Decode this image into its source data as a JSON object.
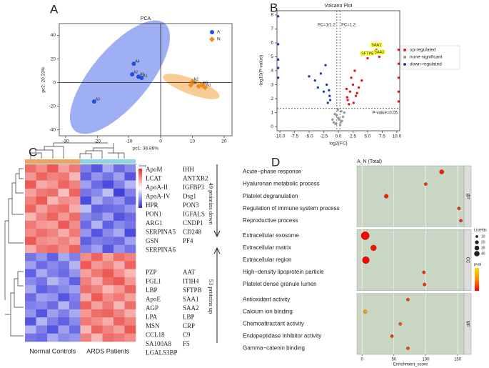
{
  "panel_labels": [
    "A",
    "B",
    "C",
    "D"
  ],
  "chart_data": [
    {
      "type": "scatter",
      "title": "PCA",
      "xlabel": "pc1: 36.86%",
      "ylabel": "pc2: 20.23%",
      "xlim": [
        -32,
        22.5
      ],
      "xticks": [
        -30,
        -20,
        -10,
        0,
        10,
        20
      ],
      "ylim": [
        -45,
        50
      ],
      "yticks": [
        -40,
        -20,
        0,
        20,
        40
      ],
      "zero_lines": true,
      "legend": "upper right",
      "series": [
        {
          "name": "A",
          "color": "#1f4fe0",
          "marker": "circle",
          "x": [
            -8.5,
            -9,
            -7,
            -6,
            -21
          ],
          "values": [
            16,
            7,
            5,
            4,
            -16
          ],
          "labels": [
            "A4",
            "A2",
            "A5",
            "A1",
            "A3"
          ]
        },
        {
          "name": "N",
          "color": "#f28c1e",
          "marker": "diamond",
          "x": [
            10,
            9.5,
            12,
            14,
            13
          ],
          "values": [
            1,
            -2,
            -3,
            -4,
            -2
          ],
          "labels": [
            "N2",
            "N4",
            "N5",
            "N1",
            "N3"
          ]
        }
      ]
    },
    {
      "type": "scatter",
      "title": "Volcano Plot",
      "xlabel": "log2(FC)",
      "ylabel": "-log10(P-value)",
      "xlim": [
        -10.5,
        10.5
      ],
      "xticks": [
        {
          "value": -10,
          "label": "-10.0"
        },
        -7.5,
        {
          "value": -5,
          "label": "-5.0"
        },
        -2.5,
        {
          "value": 0,
          "label": "0.0"
        },
        2.5,
        {
          "value": 5,
          "label": "5.0"
        },
        7.5,
        {
          "value": 10,
          "label": "10.0"
        }
      ],
      "ylim": [
        -0.3,
        8.3
      ],
      "yticks": [
        0,
        1,
        2,
        3,
        4,
        5,
        6,
        7,
        8
      ],
      "legend": "center right",
      "thresholds": {
        "x": [
          -0.263,
          0.263
        ],
        "y": 1.301,
        "labels": [
          "FC=1/1.2",
          "FC=1.2",
          "P-value=0.05"
        ]
      },
      "series": [
        {
          "name": "up-regulated",
          "color": "#e41a1c",
          "marker": "circle",
          "x": [
            1.5,
            2,
            2.5,
            3,
            1.8,
            2.2,
            3.5,
            1.6,
            2.8,
            4,
            1.4,
            2.6,
            3.2,
            10.3,
            10.3,
            10.3,
            10.3,
            10.3,
            5,
            6.5,
            7
          ],
          "values": [
            2.1,
            2.5,
            3,
            2.2,
            1.6,
            3.5,
            2.8,
            1.9,
            4,
            3.3,
            2.7,
            1.7,
            2.4,
            5.5,
            4.5,
            3.5,
            2.5,
            1.8,
            4.9,
            5.5,
            5
          ],
          "labels": [
            null,
            null,
            null,
            null,
            null,
            null,
            null,
            null,
            null,
            null,
            null,
            null,
            null,
            null,
            null,
            null,
            null,
            null,
            "SFTPB",
            "SAA1",
            "SAA2"
          ]
        },
        {
          "name": "none-significant",
          "color": "#999999",
          "marker": "circle",
          "x": [
            -0.8,
            -0.3,
            0.2,
            0.5,
            -0.5,
            0.8,
            -0.1,
            0.3,
            -0.6,
            0.6,
            0,
            1,
            -1,
            0.4,
            -0.4
          ],
          "values": [
            0.3,
            0.8,
            0.5,
            1.1,
            0.2,
            0.7,
            1.2,
            0.1,
            0.9,
            0.4,
            0.6,
            1.0,
            0.5,
            0.3,
            0.2
          ]
        },
        {
          "name": "down-regulated",
          "color": "#1f3fbf",
          "marker": "circle",
          "x": [
            -1.5,
            -2,
            -2.5,
            -3,
            -1.8,
            -4,
            -3.5,
            -1.4,
            -2.2,
            -5,
            -1.6,
            -10.3,
            -10.3,
            -10.3,
            -10.3,
            -10.3
          ],
          "values": [
            2.2,
            3,
            2.5,
            3.8,
            1.7,
            3.3,
            2.8,
            1.9,
            4.4,
            3.6,
            2.6,
            7.9,
            5.9,
            4.8,
            4.2,
            3.5
          ]
        }
      ]
    },
    {
      "type": "heatmap",
      "legend_title": "Group",
      "color_range": [
        -2,
        2
      ],
      "colors": [
        "#2b2bd9",
        "#ffffff",
        "#e8302a"
      ],
      "column_groups": [
        {
          "name": "Normal Controls",
          "color": "#f0a35e",
          "columns": 5
        },
        {
          "name": "ARDS Patients",
          "color": "#8fd3e8",
          "columns": 5
        }
      ],
      "matrix": [
        [
          1.4,
          1.1,
          1.6,
          0.9,
          1.3,
          -1.2,
          -1.6,
          -0.8,
          -1.4,
          -1.1
        ],
        [
          1.0,
          1.5,
          1.2,
          1.3,
          0.7,
          -1.5,
          -1.0,
          -1.3,
          -0.9,
          -1.6
        ],
        [
          1.6,
          0.8,
          1.0,
          1.5,
          1.2,
          -0.9,
          -1.4,
          -1.7,
          -1.2,
          -0.7
        ],
        [
          0.9,
          1.3,
          1.4,
          0.6,
          1.5,
          -1.3,
          -1.1,
          -0.6,
          -1.8,
          -1.2
        ],
        [
          1.2,
          1.6,
          0.7,
          1.1,
          1.0,
          -1.7,
          -0.8,
          -1.2,
          -1.0,
          -1.5
        ],
        [
          1.5,
          0.9,
          1.3,
          1.4,
          0.8,
          -0.6,
          -1.5,
          -1.4,
          -1.3,
          -1.0
        ],
        [
          0.7,
          1.2,
          1.5,
          1.0,
          1.4,
          -1.1,
          -1.3,
          -0.9,
          -1.6,
          -1.4
        ],
        [
          1.3,
          1.0,
          0.9,
          1.6,
          1.1,
          -1.4,
          -0.7,
          -1.5,
          -1.1,
          -1.3
        ],
        [
          1.1,
          1.4,
          1.2,
          0.8,
          1.3,
          -1.0,
          -1.6,
          -1.1,
          -0.8,
          -1.7
        ],
        [
          1.6,
          1.1,
          1.0,
          1.2,
          0.9,
          -1.5,
          -1.2,
          -1.3,
          -1.4,
          -0.9
        ],
        [
          0.8,
          1.3,
          1.4,
          1.1,
          1.5,
          -1.2,
          -0.9,
          -1.6,
          -1.0,
          -1.3
        ],
        [
          -1.3,
          -1.0,
          -1.5,
          -0.8,
          -1.2,
          1.1,
          1.5,
          0.9,
          1.4,
          1.2
        ],
        [
          -0.9,
          -1.4,
          -1.1,
          -1.3,
          -0.7,
          1.6,
          1.0,
          1.2,
          0.8,
          1.5
        ],
        [
          -1.5,
          -0.8,
          -1.2,
          -1.4,
          -1.0,
          0.9,
          1.3,
          1.6,
          1.1,
          0.7
        ],
        [
          -1.1,
          -1.3,
          -0.7,
          -1.0,
          -1.5,
          1.2,
          0.8,
          1.4,
          1.6,
          1.0
        ],
        [
          -0.8,
          -1.5,
          -1.3,
          -1.1,
          -0.9,
          1.4,
          1.2,
          0.7,
          1.0,
          1.5
        ],
        [
          -1.4,
          -0.9,
          -1.0,
          -1.6,
          -1.2,
          0.8,
          1.6,
          1.1,
          1.3,
          0.9
        ],
        [
          -1.2,
          -1.1,
          -1.4,
          -0.7,
          -1.3,
          1.5,
          0.9,
          1.3,
          0.7,
          1.4
        ],
        [
          -1.0,
          -1.6,
          -0.9,
          -1.2,
          -0.8,
          1.0,
          1.4,
          1.5,
          1.2,
          0.8
        ],
        [
          -1.6,
          -0.7,
          -1.2,
          -1.5,
          -1.1,
          1.3,
          1.1,
          0.8,
          1.5,
          1.2
        ],
        [
          -0.7,
          -1.2,
          -1.6,
          -0.9,
          -1.4,
          0.7,
          1.5,
          1.2,
          0.9,
          1.6
        ],
        [
          -1.3,
          -1.4,
          -0.8,
          -1.1,
          -1.0,
          1.2,
          0.7,
          1.4,
          1.3,
          1.1
        ]
      ],
      "protein_labels": [
        {
          "names": [
            "ApoM",
            "LCAT",
            "ApoA-II",
            "ApoA-IV",
            "HPR",
            "PON1",
            "ARG1",
            "SERPINA5",
            "GSN",
            "SERPINA6"
          ],
          "colors": [
            "#2f7fc1",
            "#222222",
            "#2f7fc1",
            "#2f7fc1",
            "#2f7fc1",
            "#2f7fc1",
            "#222222",
            "#2f7fc1",
            "#222222",
            "#2f7fc1"
          ]
        },
        {
          "names": [
            "IHH",
            "ANTXR2",
            "IGFBP3",
            "Dsg1",
            "PON3",
            "IGFALS",
            "CNDP1",
            "CD248",
            "PF4"
          ],
          "colors": [
            "#222222",
            "#222222",
            "#2f7fc1",
            "#222222",
            "#2f7fc1",
            "#222222",
            "#222222",
            "#222222",
            "#222222"
          ]
        },
        {
          "names": [
            "PZP",
            "FGL1",
            "LBP",
            "ApoE",
            "AGP",
            "LPA",
            "MSN",
            "CCL18",
            "SA100A8",
            "LGALS3BP"
          ],
          "colors": [
            "#222222",
            "#222222",
            "#e02a2a",
            "#e02a2a",
            "#222222",
            "#e02a2a",
            "#222222",
            "#222222",
            "#e02a2a",
            "#e02a2a"
          ]
        },
        {
          "names": [
            "AAT",
            "ITIH4",
            "SFTPB",
            "SAA1",
            "SAA2",
            "LBP",
            "CRP",
            "C9",
            "F5"
          ],
          "colors": [
            "#222222",
            "#e02a2a",
            "#e02a2a",
            "#e02a2a",
            "#e02a2a",
            "#222222",
            "#222222",
            "#222222",
            "#222222"
          ]
        }
      ],
      "annotations": [
        "49 proteins down",
        "53 proteins up"
      ]
    },
    {
      "type": "dot",
      "title": "A_N (Total)",
      "xlabel": "Enrichment_score",
      "xlim": [
        -8,
        160
      ],
      "xticks": [
        0,
        50,
        100,
        150
      ],
      "categories": [
        "Acute−phase response",
        "Hyaluronan metabolic process",
        "Platelet degranulation",
        "Regulation of immune system process",
        "Reproductive process",
        "Extracellular exosome",
        "Extracellular matrix",
        "Extracellular region",
        "High−density lipoprotein particle",
        "Platelet dense granule lumen",
        "Antioxidant activity",
        "Calcium ion binding",
        "Chemoattractant activity",
        "Endopeptidase inhibitor activity",
        "Gamma−catenin binding"
      ],
      "group": [
        "BP",
        "BP",
        "BP",
        "BP",
        "BP",
        "CC",
        "CC",
        "CC",
        "CC",
        "CC",
        "MF",
        "MF",
        "MF",
        "MF",
        "MF"
      ],
      "values": [
        125,
        100,
        38,
        152,
        155,
        5,
        18,
        6,
        97,
        98,
        72,
        5,
        60,
        47,
        72
      ],
      "sizes": [
        12,
        6,
        10,
        6,
        6,
        40,
        20,
        30,
        6,
        6,
        6,
        8,
        6,
        6,
        6
      ],
      "colors": [
        "#ff1a00",
        "#ff3000",
        "#ff1a00",
        "#ff2a00",
        "#ff2a00",
        "#ff0000",
        "#ff1000",
        "#ff0000",
        "#ff2000",
        "#ff2000",
        "#ff4000",
        "#ffa500",
        "#ff5000",
        "#ff3000",
        "#ff4000"
      ],
      "size_legend_title": "ListHits",
      "size_legend": [
        10,
        20,
        30,
        40
      ],
      "color_legend_title": "pval",
      "color_gradient": [
        "#ffd700",
        "#ff8c00",
        "#ff0000"
      ]
    }
  ]
}
